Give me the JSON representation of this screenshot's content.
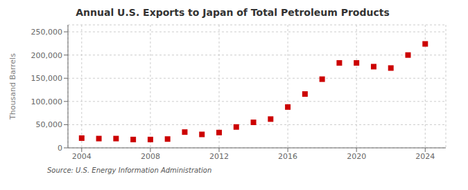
{
  "chart_data": {
    "type": "scatter",
    "title": "Annual U.S. Exports to Japan of Total Petroleum Products",
    "ylabel": "Thousand Barrels",
    "annotations": [
      "Source: U.S. Energy Information Administration"
    ],
    "x": [
      2004,
      2005,
      2006,
      2007,
      2008,
      2009,
      2010,
      2011,
      2012,
      2013,
      2014,
      2015,
      2016,
      2017,
      2018,
      2019,
      2020,
      2021,
      2022,
      2023,
      2024
    ],
    "values": [
      21000,
      20000,
      20000,
      18000,
      18000,
      19000,
      34000,
      29000,
      33000,
      45000,
      55000,
      62000,
      88000,
      116000,
      148000,
      183000,
      183000,
      175000,
      172000,
      200000,
      224000
    ],
    "color": "#CC0000",
    "marker": "square",
    "xlim": [
      2003.2,
      2025.2
    ],
    "ylim": [
      0,
      265000
    ],
    "xticks": [
      2004,
      2008,
      2012,
      2016,
      2020,
      2024
    ],
    "yticks": [
      0,
      {
        "value": 50000,
        "label": "50,000"
      },
      {
        "value": 100000,
        "label": "100,000"
      },
      {
        "value": 150000,
        "label": "150,000"
      },
      {
        "value": 200000,
        "label": "200,000"
      },
      {
        "value": 250000,
        "label": "250,000"
      }
    ],
    "grid": true
  }
}
